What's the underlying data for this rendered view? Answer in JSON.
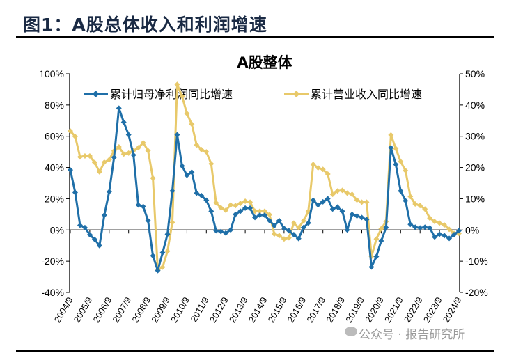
{
  "figure_title": "图1：A股总体收入和利润增速",
  "watermark": "公众号 · 报告研究所",
  "colors": {
    "profit": "#1f6fa8",
    "revenue": "#e8c96a"
  },
  "chart_data": {
    "type": "line",
    "title": "A股整体",
    "legend_placement": "top",
    "grid": false,
    "x_tick_labels": [
      "2004/9",
      "2005/9",
      "2006/9",
      "2007/9",
      "2008/9",
      "2009/9",
      "2010/9",
      "2011/9",
      "2012/9",
      "2013/9",
      "2014/9",
      "2015/9",
      "2016/9",
      "2017/9",
      "2018/9",
      "2019/9",
      "2020/9",
      "2021/9",
      "2022/9",
      "2023/9",
      "2024/9"
    ],
    "x_start": "2004/9",
    "x_end": "2024/9",
    "x_frequency": "quarterly",
    "y_left": {
      "range": [
        -40,
        100
      ],
      "ticks": [
        "-40%",
        "-20%",
        "0%",
        "20%",
        "40%",
        "60%",
        "80%",
        "100%"
      ],
      "unit": "%"
    },
    "y_right": {
      "range": [
        -20,
        50
      ],
      "ticks": [
        "-20%",
        "-10%",
        "0%",
        "10%",
        "20%",
        "30%",
        "40%",
        "50%"
      ],
      "unit": "%"
    },
    "series": [
      {
        "name": "累计归母净利润同比增速",
        "axis": "left",
        "marker": "diamond",
        "values": [
          38.4,
          24,
          3,
          1.5,
          -3,
          -6,
          -10,
          9.5,
          24.5,
          46.5,
          78,
          69,
          61,
          48,
          16,
          15,
          6,
          -16.5,
          -26,
          -14.5,
          -2.7,
          25,
          61,
          41,
          35,
          37,
          23.6,
          22,
          19,
          12,
          -0.5,
          -1,
          -2,
          0,
          10,
          12,
          14,
          14,
          8,
          9.5,
          9.5,
          6,
          2.7,
          6,
          1,
          -0.5,
          -3,
          -5.5,
          1.5,
          4.5,
          19,
          16,
          18,
          20,
          13.4,
          14.7,
          12,
          0,
          10,
          9,
          8,
          6.7,
          -23.7,
          -17,
          -7,
          1.5,
          52.7,
          42,
          25,
          18.7,
          3.6,
          1.8,
          1.3,
          1.8,
          1.3,
          -4.5,
          -2.7,
          -3.6,
          -5.4,
          -3,
          -0.5
        ]
      },
      {
        "name": "累计营业收入同比增速",
        "axis": "right",
        "marker": "diamond",
        "values": [
          31.7,
          29.9,
          23.4,
          23.7,
          23.7,
          21.6,
          18.6,
          21.7,
          22.5,
          25.3,
          26.6,
          24.3,
          24.6,
          25.4,
          26.3,
          27.9,
          25.4,
          16.6,
          -12.9,
          -11.9,
          -6.8,
          2.4,
          46.6,
          42.8,
          37.3,
          33.9,
          27.2,
          25.7,
          25,
          21.2,
          8.7,
          7.1,
          6.3,
          8,
          7.8,
          8.5,
          9.2,
          8.9,
          6,
          6,
          6,
          4.9,
          -1.3,
          -1.8,
          -2.9,
          -2.5,
          2.2,
          0.7,
          2.9,
          6,
          21,
          19.9,
          19.4,
          17.9,
          11.4,
          12.5,
          12.7,
          11.8,
          11.4,
          9.6,
          8.9,
          8.9,
          -8.5,
          -2.9,
          0.4,
          2.7,
          30.4,
          26.1,
          21.9,
          19,
          10.7,
          8.3,
          7.8,
          6.7,
          3.8,
          2.7,
          2.2,
          1.6,
          0.2,
          -1.1,
          -1.1
        ]
      }
    ]
  }
}
